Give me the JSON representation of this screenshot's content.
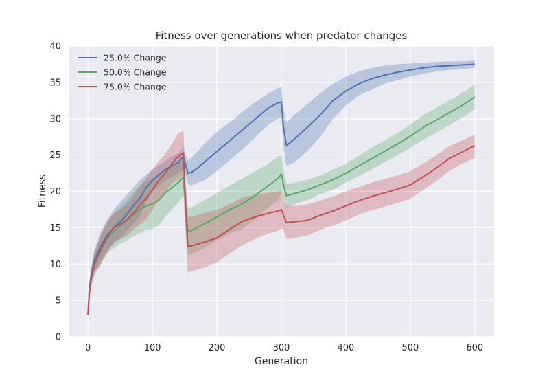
{
  "chart_data": {
    "type": "line",
    "title": "Fitness over generations when predator changes",
    "xlabel": "Generation",
    "ylabel": "Fitness",
    "xlim": [
      -30,
      630
    ],
    "ylim": [
      0,
      40
    ],
    "xticks": [
      0,
      100,
      200,
      300,
      400,
      500,
      600
    ],
    "yticks": [
      0,
      5,
      10,
      15,
      20,
      25,
      30,
      35,
      40
    ],
    "grid": true,
    "legend_position": "top-left",
    "background": "#eaeaf2",
    "series": [
      {
        "name": "25.0% Change",
        "color": "#4c72b0",
        "x": [
          0,
          2,
          5,
          10,
          20,
          30,
          40,
          50,
          60,
          70,
          80,
          90,
          100,
          110,
          120,
          130,
          140,
          148,
          152,
          155,
          160,
          170,
          180,
          200,
          220,
          240,
          260,
          280,
          295,
          300,
          303,
          308,
          320,
          340,
          360,
          380,
          400,
          420,
          440,
          460,
          480,
          500,
          520,
          540,
          560,
          580,
          600
        ],
        "y": [
          3.0,
          6.5,
          8.5,
          10.5,
          12.5,
          14.0,
          15.0,
          15.8,
          16.8,
          18.0,
          19.0,
          20.5,
          21.5,
          22.3,
          23.0,
          23.5,
          24.0,
          24.8,
          23.5,
          22.5,
          22.6,
          23.2,
          24.0,
          25.5,
          27.0,
          28.5,
          30.0,
          31.5,
          32.2,
          32.3,
          29.0,
          26.3,
          27.2,
          28.8,
          30.5,
          32.5,
          33.8,
          34.8,
          35.5,
          36.0,
          36.4,
          36.7,
          37.0,
          37.2,
          37.3,
          37.4,
          37.5
        ],
        "upper": [
          3.2,
          7.5,
          9.5,
          12.0,
          14.5,
          16.0,
          17.5,
          18.5,
          19.5,
          20.5,
          21.5,
          22.3,
          23.0,
          23.6,
          24.2,
          24.8,
          25.3,
          26.0,
          25.0,
          24.3,
          24.6,
          25.5,
          26.5,
          28.2,
          29.5,
          31.0,
          32.3,
          33.5,
          34.2,
          34.4,
          31.5,
          29.5,
          30.5,
          32.0,
          33.5,
          34.8,
          35.8,
          36.5,
          37.0,
          37.3,
          37.5,
          37.6,
          37.7,
          37.8,
          37.9,
          37.9,
          38.0
        ],
        "lower": [
          2.8,
          5.5,
          7.5,
          9.0,
          10.5,
          12.0,
          12.8,
          13.5,
          14.5,
          15.5,
          16.5,
          18.5,
          20.0,
          20.8,
          21.5,
          22.0,
          22.5,
          23.0,
          22.0,
          21.0,
          20.8,
          21.2,
          21.5,
          22.8,
          24.3,
          25.8,
          27.5,
          29.2,
          30.0,
          30.2,
          26.5,
          23.5,
          24.0,
          25.5,
          27.5,
          30.0,
          31.8,
          33.2,
          34.0,
          34.8,
          35.3,
          35.8,
          36.2,
          36.5,
          36.7,
          36.8,
          37.0
        ]
      },
      {
        "name": "50.0% Change",
        "color": "#55a868",
        "x": [
          0,
          2,
          5,
          10,
          20,
          30,
          40,
          50,
          60,
          70,
          80,
          90,
          100,
          110,
          120,
          130,
          140,
          148,
          152,
          155,
          160,
          180,
          200,
          220,
          240,
          260,
          280,
          295,
          300,
          303,
          308,
          320,
          340,
          360,
          380,
          400,
          420,
          440,
          460,
          480,
          500,
          520,
          540,
          560,
          580,
          600
        ],
        "y": [
          3.0,
          6.0,
          8.0,
          10.0,
          12.0,
          13.5,
          14.5,
          15.3,
          16.0,
          16.8,
          17.5,
          18.0,
          18.3,
          18.8,
          19.8,
          20.5,
          21.2,
          22.0,
          17.0,
          14.5,
          14.6,
          15.5,
          16.5,
          17.5,
          18.3,
          19.5,
          20.8,
          21.8,
          22.4,
          21.0,
          19.4,
          19.7,
          20.2,
          20.9,
          21.6,
          22.5,
          23.5,
          24.5,
          25.5,
          26.5,
          27.6,
          28.8,
          29.8,
          30.8,
          31.8,
          33.0
        ],
        "upper": [
          3.2,
          7.0,
          9.0,
          11.5,
          14.0,
          15.5,
          16.8,
          17.8,
          18.8,
          19.8,
          20.8,
          21.3,
          21.8,
          22.3,
          23.0,
          23.5,
          24.0,
          24.5,
          20.0,
          17.8,
          17.8,
          18.8,
          19.8,
          20.8,
          21.8,
          22.8,
          23.8,
          24.8,
          25.0,
          23.0,
          21.0,
          21.2,
          21.6,
          22.2,
          23.0,
          23.8,
          24.9,
          26.0,
          27.0,
          28.0,
          29.2,
          30.5,
          31.5,
          32.5,
          33.5,
          34.7
        ],
        "lower": [
          2.8,
          5.0,
          7.0,
          8.7,
          10.0,
          11.5,
          12.2,
          12.8,
          13.2,
          13.8,
          14.2,
          14.7,
          14.8,
          15.3,
          16.5,
          17.5,
          18.4,
          19.5,
          14.0,
          11.3,
          11.4,
          12.2,
          13.2,
          14.2,
          14.8,
          16.2,
          17.8,
          18.8,
          19.8,
          19.0,
          17.8,
          18.2,
          18.8,
          19.6,
          20.2,
          21.2,
          22.1,
          23.0,
          24.0,
          25.0,
          26.0,
          27.1,
          28.1,
          29.1,
          30.1,
          31.3
        ]
      },
      {
        "name": "75.0% Change",
        "color": "#c44e52",
        "x": [
          0,
          2,
          5,
          10,
          20,
          30,
          40,
          50,
          60,
          70,
          80,
          90,
          100,
          110,
          120,
          130,
          140,
          148,
          152,
          155,
          160,
          180,
          200,
          220,
          240,
          260,
          280,
          295,
          300,
          303,
          308,
          320,
          340,
          360,
          380,
          400,
          420,
          440,
          460,
          480,
          500,
          520,
          540,
          560,
          580,
          600
        ],
        "y": [
          3.0,
          6.0,
          8.0,
          10.0,
          12.0,
          13.8,
          15.0,
          15.5,
          16.0,
          17.0,
          18.0,
          19.0,
          20.2,
          21.5,
          22.5,
          23.8,
          24.8,
          25.3,
          17.0,
          12.4,
          12.5,
          13.0,
          13.6,
          14.8,
          15.9,
          16.5,
          17.0,
          17.3,
          17.5,
          16.8,
          15.7,
          15.8,
          16.0,
          16.7,
          17.3,
          18.0,
          18.7,
          19.3,
          19.8,
          20.3,
          20.9,
          22.0,
          23.2,
          24.5,
          25.4,
          26.3
        ],
        "upper": [
          3.2,
          7.0,
          9.2,
          11.5,
          14.0,
          16.0,
          17.0,
          17.5,
          18.2,
          19.3,
          20.6,
          21.8,
          23.0,
          24.2,
          25.2,
          26.5,
          28.0,
          28.3,
          20.5,
          16.5,
          16.5,
          17.0,
          17.5,
          18.2,
          19.2,
          19.5,
          19.8,
          20.0,
          20.1,
          18.8,
          18.0,
          18.0,
          18.2,
          18.7,
          19.3,
          20.0,
          20.6,
          21.2,
          21.7,
          22.2,
          22.8,
          23.8,
          25.0,
          26.2,
          27.0,
          27.8
        ],
        "lower": [
          2.8,
          5.0,
          7.0,
          8.5,
          10.0,
          11.6,
          13.0,
          13.5,
          13.8,
          14.7,
          15.4,
          16.2,
          17.4,
          18.8,
          19.8,
          21.1,
          21.6,
          22.3,
          13.5,
          8.8,
          9.0,
          9.5,
          10.2,
          11.5,
          12.6,
          13.5,
          14.2,
          14.6,
          14.9,
          14.8,
          13.4,
          13.6,
          13.9,
          14.7,
          15.3,
          16.0,
          16.8,
          17.4,
          17.9,
          18.4,
          19.0,
          20.2,
          21.4,
          22.8,
          23.8,
          24.6
        ]
      }
    ]
  }
}
